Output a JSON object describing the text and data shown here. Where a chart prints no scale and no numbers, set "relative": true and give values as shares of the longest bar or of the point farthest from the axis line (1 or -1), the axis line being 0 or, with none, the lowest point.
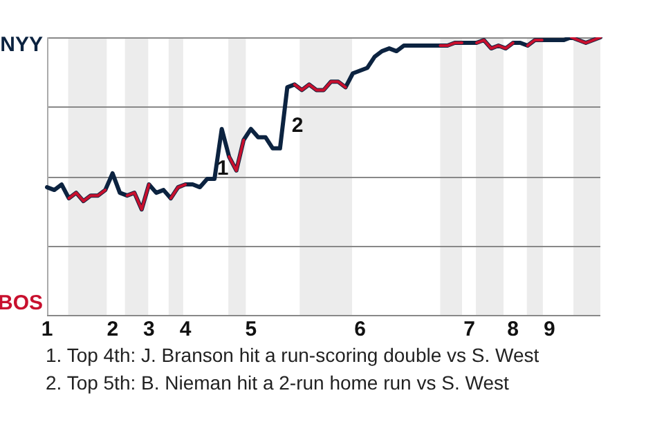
{
  "chart_data": {
    "type": "line",
    "relative": true,
    "categories": [
      "1",
      null,
      null,
      null,
      null,
      null,
      null,
      null,
      null,
      "2",
      null,
      null,
      null,
      null,
      "3",
      null,
      null,
      null,
      null,
      "4",
      null,
      null,
      null,
      null,
      null,
      null,
      null,
      null,
      "5",
      null,
      null,
      null,
      null,
      null,
      null,
      null,
      null,
      null,
      null,
      null,
      null,
      null,
      null,
      "6",
      null,
      null,
      null,
      null,
      null,
      null,
      null,
      null,
      null,
      null,
      null,
      null,
      null,
      null,
      "7",
      null,
      null,
      null,
      null,
      null,
      "8",
      null,
      null,
      null,
      null,
      "9",
      null,
      null,
      null,
      null,
      null,
      null,
      null
    ],
    "series": [
      {
        "color": "#0c2340",
        "values": [
          0.46,
          0.45,
          0.47,
          0.42,
          0.44,
          0.41,
          0.43,
          0.43,
          0.45,
          0.51,
          0.44,
          0.43,
          0.44,
          0.38,
          0.47,
          0.44,
          0.45,
          0.42,
          0.46,
          0.47,
          0.47,
          0.46,
          0.49,
          0.49,
          0.67,
          0.57,
          0.52,
          0.63,
          0.67,
          0.64,
          0.64,
          0.6,
          0.6,
          0.82,
          0.83,
          0.81,
          0.83,
          0.81,
          0.81,
          0.84,
          0.84,
          0.82,
          0.87,
          0.88,
          0.89,
          0.93,
          0.95,
          0.96,
          0.95,
          0.97,
          0.97,
          0.97,
          0.97,
          0.97,
          0.97,
          0.97,
          0.98,
          0.98,
          0.98,
          0.98,
          0.99,
          0.96,
          0.97,
          0.96,
          0.98,
          0.98,
          0.97,
          0.99,
          0.99,
          0.99,
          0.99,
          0.99,
          1,
          0.99,
          0.98,
          0.99,
          1
        ]
      },
      {
        "color": "#c8102e",
        "values": [
          null,
          null,
          null,
          0.42,
          0.44,
          0.41,
          0.43,
          0.43,
          0.45,
          null,
          null,
          0.43,
          0.44,
          0.38,
          0.47,
          null,
          null,
          0.42,
          0.46,
          0.47,
          null,
          null,
          null,
          null,
          null,
          0.57,
          0.52,
          0.63,
          null,
          null,
          null,
          null,
          null,
          null,
          0.83,
          0.81,
          0.83,
          0.81,
          0.81,
          0.84,
          0.84,
          0.82,
          null,
          null,
          null,
          null,
          null,
          null,
          null,
          null,
          null,
          null,
          null,
          null,
          0.97,
          0.97,
          0.98,
          0.98,
          null,
          0.98,
          0.99,
          0.96,
          0.97,
          0.96,
          0.98,
          null,
          0.97,
          0.99,
          0.99,
          null,
          null,
          null,
          1,
          0.99,
          0.98,
          0.99,
          1
        ]
      }
    ],
    "grid": "y",
    "line_style": "solid",
    "legend": false,
    "annotations": [
      "NYY",
      "BOS",
      "1",
      "2",
      "1. Top 4th: J. Branson hit a run-scoring double vs S. West",
      "2. Top 5th: B. Nieman hit a 2-run home run vs S. West"
    ]
  }
}
